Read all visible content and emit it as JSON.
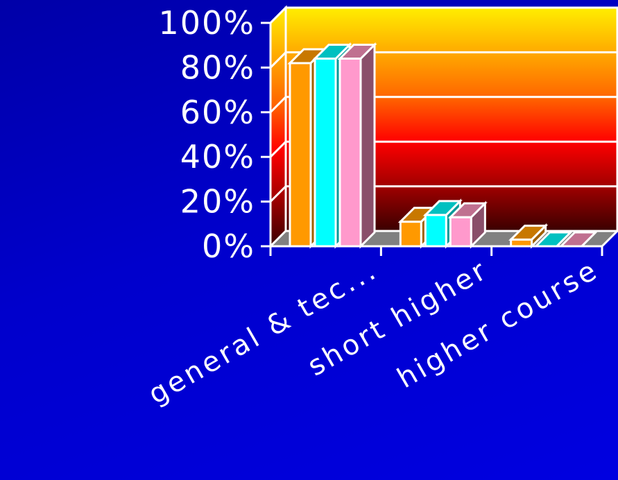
{
  "chart_data": {
    "type": "bar",
    "categories": [
      "general & tec...",
      "short higher",
      "higher course"
    ],
    "series": [
      {
        "values": [
          82,
          11,
          3
        ],
        "color": "#ff9900",
        "top_color": "#c87800",
        "side_color": "#a06000"
      },
      {
        "values": [
          84,
          14,
          0
        ],
        "color": "#00ffff",
        "top_color": "#00c0c0",
        "side_color": "#009a9a"
      },
      {
        "values": [
          84,
          13,
          0
        ],
        "color": "#ff99cc",
        "top_color": "#c07090",
        "side_color": "#8a4f6a"
      }
    ],
    "y_ticks": [
      "0%",
      "20%",
      "40%",
      "60%",
      "80%",
      "100%"
    ],
    "ylim": [
      0,
      100
    ],
    "title": "",
    "xlabel": "",
    "ylabel": "",
    "grid": true,
    "legend": false,
    "wall_gradient": [
      "#3a0000",
      "#a00000",
      "#ff0000",
      "#ff6600",
      "#ffaa00",
      "#ffee00"
    ],
    "floor_color": "#808080"
  }
}
